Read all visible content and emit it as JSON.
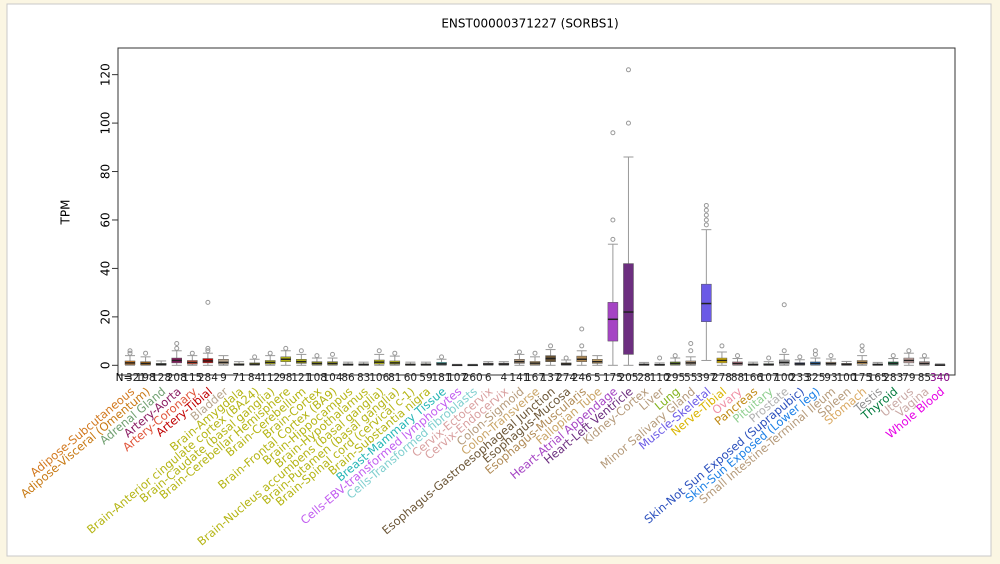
{
  "chart_data": {
    "type": "box",
    "title": "ENST00000371227 (SORBS1)",
    "y_label": "TPM",
    "n_label": "N=",
    "ylim": [
      -4,
      131
    ],
    "yticks": [
      0,
      20,
      40,
      60,
      80,
      100,
      120
    ],
    "series": [
      {
        "name": "Adipose-Subcutaneous",
        "color": "#d2781e",
        "n": 321,
        "q1": 0.3,
        "median": 1,
        "q3": 1.8,
        "whisker_low": 0,
        "whisker_high": 4,
        "outliers": [
          5,
          6
        ]
      },
      {
        "name": "Adipose-Visceral (Omentum)",
        "color": "#c87a14",
        "n": 198,
        "q1": 0.2,
        "median": 0.8,
        "q3": 1.5,
        "whisker_low": 0,
        "whisker_high": 3.5,
        "outliers": [
          5
        ]
      },
      {
        "name": "Adrenal Gland",
        "color": "#6f9f6f",
        "n": 128,
        "q1": 0.1,
        "median": 0.4,
        "q3": 0.8,
        "whisker_low": 0,
        "whisker_high": 1.8
      },
      {
        "name": "Artery-Aorta",
        "color": "#8b1c62",
        "n": 208,
        "q1": 1,
        "median": 2,
        "q3": 3,
        "whisker_low": 0,
        "whisker_high": 6,
        "outliers": [
          7,
          9
        ]
      },
      {
        "name": "Artery-Coronary",
        "color": "#e0553a",
        "n": 115,
        "q1": 0.5,
        "median": 1.2,
        "q3": 2,
        "whisker_low": 0,
        "whisker_high": 4,
        "outliers": [
          5
        ]
      },
      {
        "name": "Artery-Tibial",
        "color": "#c00000",
        "n": 284,
        "q1": 1,
        "median": 1.8,
        "q3": 2.8,
        "whisker_low": 0,
        "whisker_high": 5,
        "outliers": [
          6,
          7,
          26
        ]
      },
      {
        "name": "Bladder",
        "color": "#b8a58c",
        "n": 9,
        "q1": 0.5,
        "median": 1.2,
        "q3": 2.5,
        "whisker_low": 0,
        "whisker_high": 4
      },
      {
        "name": "Brain-Amygdala",
        "color": "#b5b514",
        "n": 71,
        "q1": 0.1,
        "median": 0.3,
        "q3": 0.7,
        "whisker_low": 0,
        "whisker_high": 1.5
      },
      {
        "name": "Brain-Anterior cingulate cortex (BA24)",
        "color": "#b5b514",
        "n": 84,
        "q1": 0.2,
        "median": 0.5,
        "q3": 1,
        "whisker_low": 0,
        "whisker_high": 2.5,
        "outliers": [
          3.5
        ]
      },
      {
        "name": "Brain-Caudate (basal ganglia)",
        "color": "#b5b514",
        "n": 112,
        "q1": 0.5,
        "median": 1.2,
        "q3": 2,
        "whisker_low": 0,
        "whisker_high": 4,
        "outliers": [
          5
        ]
      },
      {
        "name": "Brain-Cerebellar Hemisphere",
        "color": "#b5b514",
        "n": 98,
        "q1": 1.5,
        "median": 2.5,
        "q3": 3.5,
        "whisker_low": 0,
        "whisker_high": 6,
        "outliers": [
          7
        ]
      },
      {
        "name": "Brain-Cerebellum",
        "color": "#b5b514",
        "n": 121,
        "q1": 0.8,
        "median": 1.5,
        "q3": 2.5,
        "whisker_low": 0,
        "whisker_high": 4.5,
        "outliers": [
          6
        ]
      },
      {
        "name": "Brain-Cortex",
        "color": "#b5b514",
        "n": 108,
        "q1": 0.3,
        "median": 0.8,
        "q3": 1.5,
        "whisker_low": 0,
        "whisker_high": 3,
        "outliers": [
          4
        ]
      },
      {
        "name": "Brain-Frontal Cortex (BA9)",
        "color": "#b5b514",
        "n": 104,
        "q1": 0.3,
        "median": 0.8,
        "q3": 1.5,
        "whisker_low": 0,
        "whisker_high": 3,
        "outliers": [
          4.5
        ]
      },
      {
        "name": "Brain-Hippocampus",
        "color": "#b5b514",
        "n": 86,
        "q1": 0.1,
        "median": 0.3,
        "q3": 0.6,
        "whisker_low": 0,
        "whisker_high": 1.3
      },
      {
        "name": "Brain-Hypothalamus",
        "color": "#b5b514",
        "n": 83,
        "q1": 0.1,
        "median": 0.3,
        "q3": 0.6,
        "whisker_low": 0,
        "whisker_high": 1.3
      },
      {
        "name": "Brain-Nucleus accumbens (basal ganglia)",
        "color": "#b5b514",
        "n": 106,
        "q1": 0.5,
        "median": 1.3,
        "q3": 2.2,
        "whisker_low": 0,
        "whisker_high": 4.5,
        "outliers": [
          6
        ]
      },
      {
        "name": "Brain-Putamen (basal ganglia)",
        "color": "#b5b514",
        "n": 81,
        "q1": 0.4,
        "median": 1,
        "q3": 1.8,
        "whisker_low": 0,
        "whisker_high": 3.8,
        "outliers": [
          5
        ]
      },
      {
        "name": "Brain-Spinal cord (cervical c-1)",
        "color": "#b5b514",
        "n": 60,
        "q1": 0.1,
        "median": 0.3,
        "q3": 0.6,
        "whisker_low": 0,
        "whisker_high": 1.3
      },
      {
        "name": "Brain-Substantia nigra",
        "color": "#b5b514",
        "n": 59,
        "q1": 0.1,
        "median": 0.3,
        "q3": 0.6,
        "whisker_low": 0,
        "whisker_high": 1.3
      },
      {
        "name": "Breast-Mammary Tissue",
        "color": "#23b5b5",
        "n": 181,
        "q1": 0.2,
        "median": 0.6,
        "q3": 1.2,
        "whisker_low": 0,
        "whisker_high": 2.5,
        "outliers": [
          3.5
        ]
      },
      {
        "name": "Cells-EBV-transformed lymphocytes",
        "color": "#c15cf0",
        "n": 107,
        "q1": 0,
        "median": 0.1,
        "q3": 0.2,
        "whisker_low": 0,
        "whisker_high": 0.4
      },
      {
        "name": "Cells-Transformed fibroblasts",
        "color": "#7fcfcf",
        "n": 260,
        "q1": 0,
        "median": 0.1,
        "q3": 0.2,
        "whisker_low": 0,
        "whisker_high": 0.4
      },
      {
        "name": "Cervix-Ectocervix",
        "color": "#d9a0a0",
        "n": 6,
        "q1": 0.2,
        "median": 0.5,
        "q3": 0.9,
        "whisker_low": 0,
        "whisker_high": 1.5
      },
      {
        "name": "Cervix-Endocervix",
        "color": "#d9a0a0",
        "n": 4,
        "q1": 0.2,
        "median": 0.5,
        "q3": 0.9,
        "whisker_low": 0,
        "whisker_high": 1.5
      },
      {
        "name": "Colon-Sigmoid",
        "color": "#b59a7a",
        "n": 141,
        "q1": 0.8,
        "median": 1.5,
        "q3": 2.5,
        "whisker_low": 0,
        "whisker_high": 4.5,
        "outliers": [
          5.5
        ]
      },
      {
        "name": "Colon-Transverse",
        "color": "#c9a466",
        "n": 167,
        "q1": 0.3,
        "median": 0.9,
        "q3": 1.6,
        "whisker_low": 0,
        "whisker_high": 3.5,
        "outliers": [
          5
        ]
      },
      {
        "name": "Esophagus-Gastroesophageal Junction",
        "color": "#6b5535",
        "n": 137,
        "q1": 1.5,
        "median": 2.8,
        "q3": 4,
        "whisker_low": 0,
        "whisker_high": 6.5,
        "outliers": [
          8
        ]
      },
      {
        "name": "Esophagus-Mucosa",
        "color": "#6b5535",
        "n": 274,
        "q1": 0.2,
        "median": 0.5,
        "q3": 1,
        "whisker_low": 0,
        "whisker_high": 2.2,
        "outliers": [
          3
        ]
      },
      {
        "name": "Esophagus-Muscularis",
        "color": "#b08a55",
        "n": 246,
        "q1": 1.5,
        "median": 2.5,
        "q3": 3.8,
        "whisker_low": 0,
        "whisker_high": 6,
        "outliers": [
          8,
          15
        ]
      },
      {
        "name": "Fallopian Tube",
        "color": "#c9a466",
        "n": 5,
        "q1": 0.8,
        "median": 1.5,
        "q3": 2.5,
        "whisker_low": 0,
        "whisker_high": 4
      },
      {
        "name": "Heart-Atrial Appendage",
        "color": "#a544c4",
        "n": 175,
        "q1": 10,
        "median": 19,
        "q3": 26,
        "whisker_low": 0,
        "whisker_high": 50,
        "outliers": [
          52,
          60,
          96
        ]
      },
      {
        "name": "Heart-Left Ventricle",
        "color": "#6c2e7f",
        "n": 205,
        "q1": 4.5,
        "median": 22,
        "q3": 42,
        "whisker_low": 0,
        "whisker_high": 86,
        "outliers": [
          100,
          122
        ]
      },
      {
        "name": "Kidney-Cortex",
        "color": "#b59a7a",
        "n": 28,
        "q1": 0.1,
        "median": 0.3,
        "q3": 0.6,
        "whisker_low": 0,
        "whisker_high": 1.2
      },
      {
        "name": "Liver",
        "color": "#b59a7a",
        "n": 110,
        "q1": 0.1,
        "median": 0.2,
        "q3": 0.5,
        "whisker_low": 0,
        "whisker_high": 1,
        "outliers": [
          3
        ]
      },
      {
        "name": "Lung",
        "color": "#82b21c",
        "n": 295,
        "q1": 0.3,
        "median": 0.8,
        "q3": 1.4,
        "whisker_low": 0,
        "whisker_high": 3,
        "outliers": [
          4
        ]
      },
      {
        "name": "Minor Salivary Gland",
        "color": "#b59a7a",
        "n": 55,
        "q1": 0.4,
        "median": 1,
        "q3": 1.8,
        "whisker_low": 0,
        "whisker_high": 3.5,
        "outliers": [
          6,
          9
        ]
      },
      {
        "name": "Muscle-Skeletal",
        "color": "#6b5ae6",
        "n": 397,
        "q1": 18,
        "median": 25.5,
        "q3": 33.5,
        "whisker_low": 2,
        "whisker_high": 56,
        "outliers": [
          58,
          60,
          62,
          64,
          66
        ]
      },
      {
        "name": "Nerve-Tibial",
        "color": "#d9b400",
        "n": 278,
        "q1": 1,
        "median": 2,
        "q3": 3,
        "whisker_low": 0,
        "whisker_high": 5.5,
        "outliers": [
          8
        ]
      },
      {
        "name": "Ovary",
        "color": "#f090a5",
        "n": 88,
        "q1": 0.3,
        "median": 0.8,
        "q3": 1.4,
        "whisker_low": 0,
        "whisker_high": 2.8,
        "outliers": [
          4
        ]
      },
      {
        "name": "Pancreas",
        "color": "#c08a14",
        "n": 166,
        "q1": 0.1,
        "median": 0.3,
        "q3": 0.6,
        "whisker_low": 0,
        "whisker_high": 1.3
      },
      {
        "name": "Pituitary",
        "color": "#8fcf8f",
        "n": 107,
        "q1": 0.1,
        "median": 0.3,
        "q3": 0.7,
        "whisker_low": 0,
        "whisker_high": 1.5,
        "outliers": [
          3
        ]
      },
      {
        "name": "Prostate",
        "color": "#b0b0b0",
        "n": 100,
        "q1": 0.5,
        "median": 1.2,
        "q3": 2.2,
        "whisker_low": 0,
        "whisker_high": 4.5,
        "outliers": [
          6,
          25
        ]
      },
      {
        "name": "Skin-Not Sun Exposed (Suprapubic)",
        "color": "#2a4fbd",
        "n": 233,
        "q1": 0.2,
        "median": 0.6,
        "q3": 1.1,
        "whisker_low": 0,
        "whisker_high": 2.3,
        "outliers": [
          3.5
        ]
      },
      {
        "name": "Skin-Sun Exposed (Lower leg)",
        "color": "#1a7fe6",
        "n": 325,
        "q1": 0.3,
        "median": 0.8,
        "q3": 1.4,
        "whisker_low": 0,
        "whisker_high": 3,
        "outliers": [
          4.5,
          6
        ]
      },
      {
        "name": "Small Intestine-Terminal Ileum",
        "color": "#b59a7a",
        "n": 93,
        "q1": 0.3,
        "median": 0.7,
        "q3": 1.3,
        "whisker_low": 0,
        "whisker_high": 2.6,
        "outliers": [
          4
        ]
      },
      {
        "name": "Spleen",
        "color": "#b59a7a",
        "n": 100,
        "q1": 0.1,
        "median": 0.4,
        "q3": 0.8,
        "whisker_low": 0,
        "whisker_high": 1.6
      },
      {
        "name": "Stomach",
        "color": "#d9a860",
        "n": 175,
        "q1": 0.5,
        "median": 1.2,
        "q3": 2,
        "whisker_low": 0,
        "whisker_high": 4,
        "outliers": [
          6,
          8
        ]
      },
      {
        "name": "Testis",
        "color": "#8f8f8f",
        "n": 165,
        "q1": 0.1,
        "median": 0.3,
        "q3": 0.6,
        "whisker_low": 0,
        "whisker_high": 1.2
      },
      {
        "name": "Thyroid",
        "color": "#007a3c",
        "n": 283,
        "q1": 0.3,
        "median": 0.8,
        "q3": 1.4,
        "whisker_low": 0,
        "whisker_high": 2.8,
        "outliers": [
          4
        ]
      },
      {
        "name": "Uterus",
        "color": "#c9a8a4",
        "n": 79,
        "q1": 1,
        "median": 2,
        "q3": 3,
        "whisker_low": 0,
        "whisker_high": 5,
        "outliers": [
          6
        ]
      },
      {
        "name": "Vagina",
        "color": "#c9a8a4",
        "n": 85,
        "q1": 0.3,
        "median": 0.8,
        "q3": 1.5,
        "whisker_low": 0,
        "whisker_high": 3,
        "outliers": [
          4
        ]
      },
      {
        "name": "Whole Blood",
        "color": "#e600e6",
        "n": 340,
        "q1": 0,
        "median": 0.1,
        "q3": 0.3,
        "whisker_low": 0,
        "whisker_high": 0.6
      }
    ]
  }
}
